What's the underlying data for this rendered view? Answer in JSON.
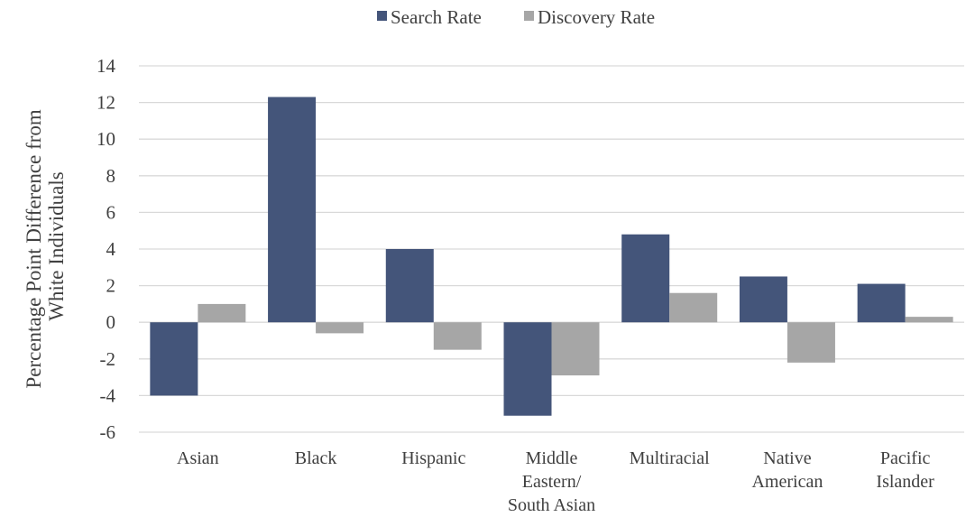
{
  "chart_data": {
    "type": "bar",
    "title": "",
    "xlabel": "",
    "ylabel": "Percentage Point Difference from White Individuals",
    "ylabel_lines": [
      "Percentage Point Difference from",
      "White Individuals"
    ],
    "ylim": [
      -6,
      14
    ],
    "yticks": [
      -6,
      -4,
      -2,
      0,
      2,
      4,
      6,
      8,
      10,
      12,
      14
    ],
    "grid": true,
    "legend_position": "top-center",
    "categories": [
      [
        "Asian"
      ],
      [
        "Black"
      ],
      [
        "Hispanic"
      ],
      [
        "Middle",
        "Eastern/",
        "South Asian"
      ],
      [
        "Multiracial"
      ],
      [
        "Native",
        "American"
      ],
      [
        "Pacific",
        "Islander"
      ]
    ],
    "series": [
      {
        "name": "Search Rate",
        "color": "#44557a",
        "values": [
          -4.0,
          12.3,
          4.0,
          -5.1,
          4.8,
          2.5,
          2.1
        ]
      },
      {
        "name": "Discovery Rate",
        "color": "#a6a6a6",
        "values": [
          1.0,
          -0.6,
          -1.5,
          -2.9,
          1.6,
          -2.2,
          0.3
        ]
      }
    ]
  }
}
